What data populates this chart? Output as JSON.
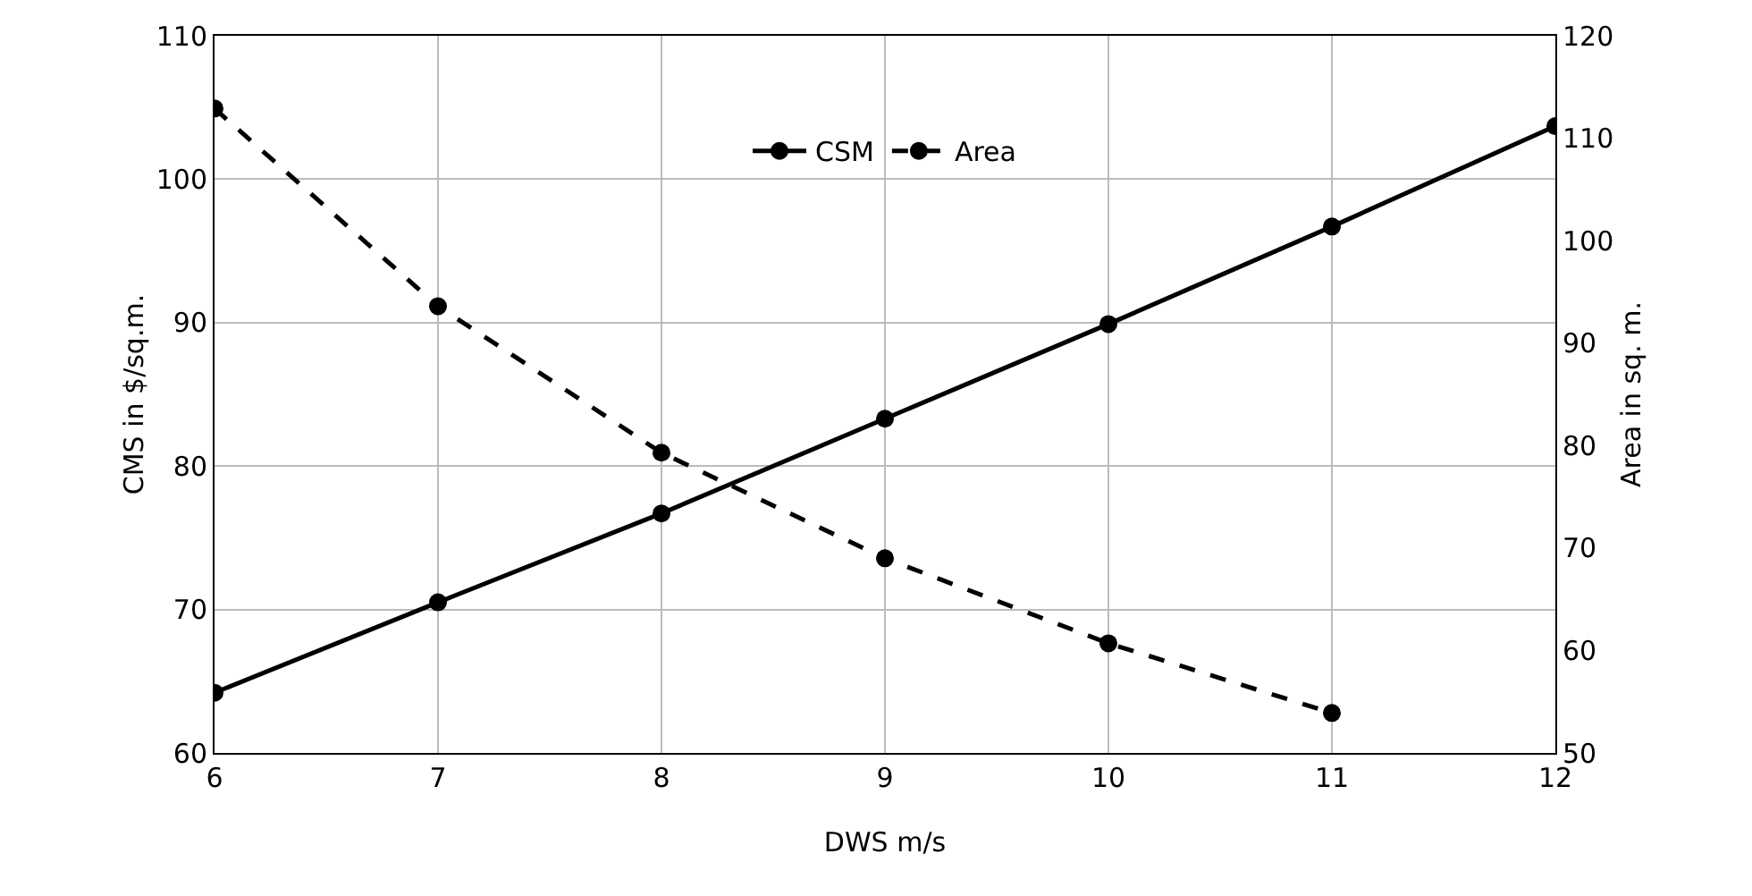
{
  "chart_data": {
    "type": "line",
    "xlabel": "DWS m/s",
    "ylabel": "CMS in $/sq.m.",
    "y2label": "Area in sq. m.",
    "x": [
      6,
      7,
      8,
      9,
      10,
      11,
      12
    ],
    "series": [
      {
        "name": "CSM",
        "color": "#000000",
        "values": [
          64.2,
          70.5,
          76.7,
          83.3,
          89.9,
          96.7,
          103.7
        ],
        "line_style": "solid"
      },
      {
        "name": "Area",
        "color": "#000000",
        "values": [
          112.9,
          93.6,
          79.3,
          69.0,
          60.7,
          53.9,
          null
        ],
        "axis": "y2",
        "line_style": "dashed"
      }
    ],
    "xlim": [
      6,
      12
    ],
    "xticks": [
      6,
      7,
      8,
      9,
      10,
      11,
      12
    ],
    "ylim": [
      60,
      110
    ],
    "yticks": [
      60,
      70,
      80,
      90,
      100,
      110
    ],
    "y2lim": [
      50,
      120
    ],
    "y2ticks": [
      50,
      60,
      70,
      80,
      90,
      100,
      110,
      120
    ],
    "grid": true,
    "legend": "top",
    "marker": "circle"
  }
}
